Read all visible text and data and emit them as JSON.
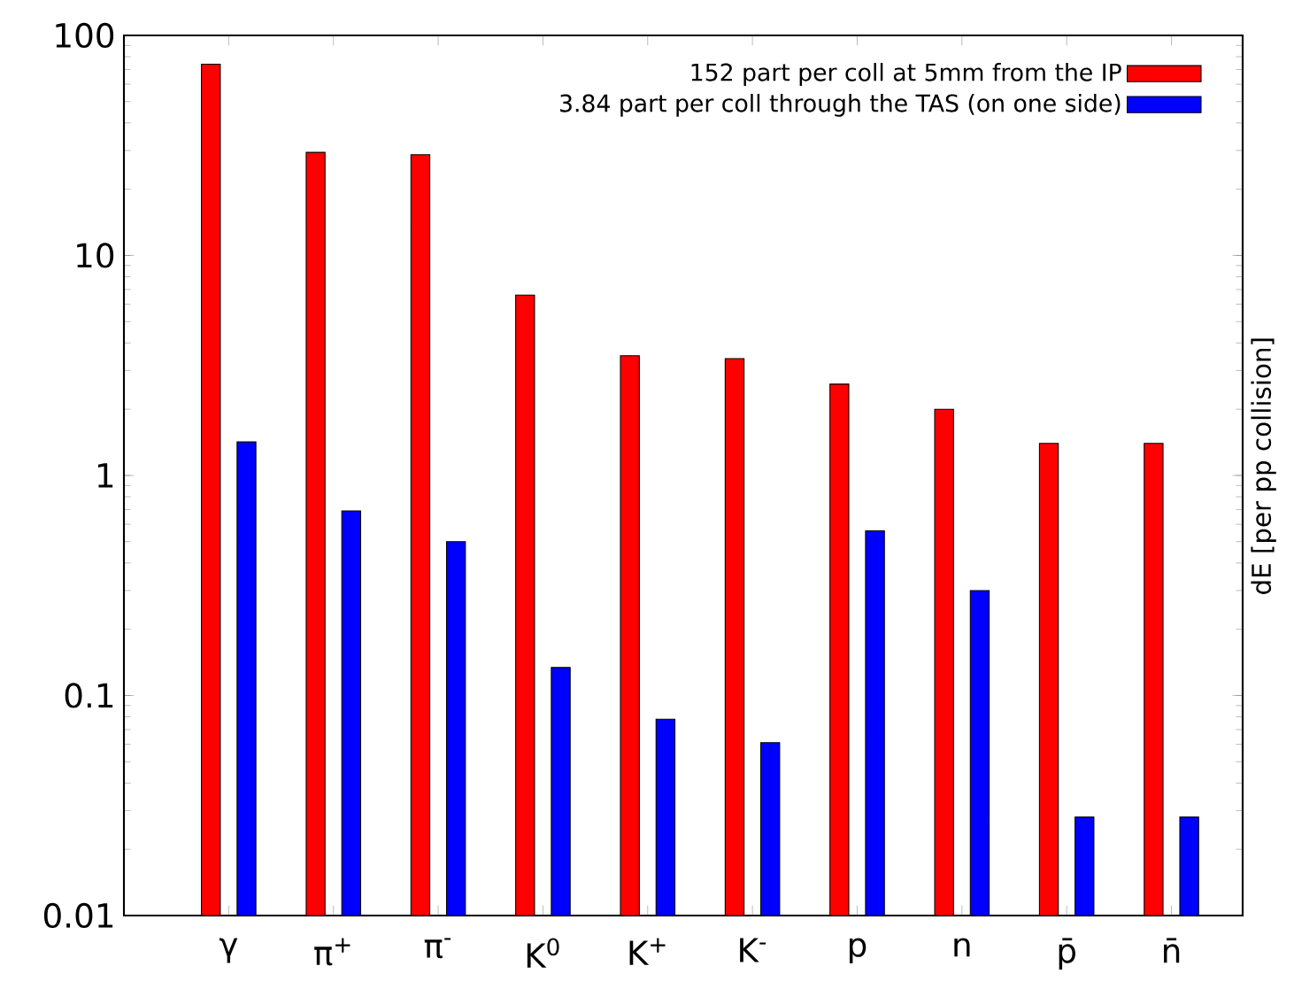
{
  "chart_data": {
    "type": "bar",
    "ylabel": "dE [per pp collision]",
    "categories": [
      "γ",
      "π$^{+}$",
      "π$^{-}$",
      "K$^{0}$",
      "K$^{+}$",
      "K$^{-}$",
      "p",
      "n",
      "p̄",
      "n̄"
    ],
    "series": [
      {
        "name": "152 part per coll at 5mm from the IP",
        "color": "#ff0000",
        "values": [
          74,
          29.4,
          28.7,
          6.6,
          3.5,
          3.4,
          2.6,
          2.0,
          1.4,
          1.4
        ]
      },
      {
        "name": "3.84 part per coll through the TAS (on one side)",
        "color": "#0000ff",
        "values": [
          1.42,
          0.69,
          0.5,
          0.134,
          0.078,
          0.061,
          0.56,
          0.3,
          0.028,
          0.028
        ]
      }
    ],
    "log": "y",
    "ylim": [
      0.01,
      100
    ],
    "yticks": [
      0.01,
      0.1,
      1,
      10,
      100
    ],
    "legend": "top right",
    "grid": false
  }
}
